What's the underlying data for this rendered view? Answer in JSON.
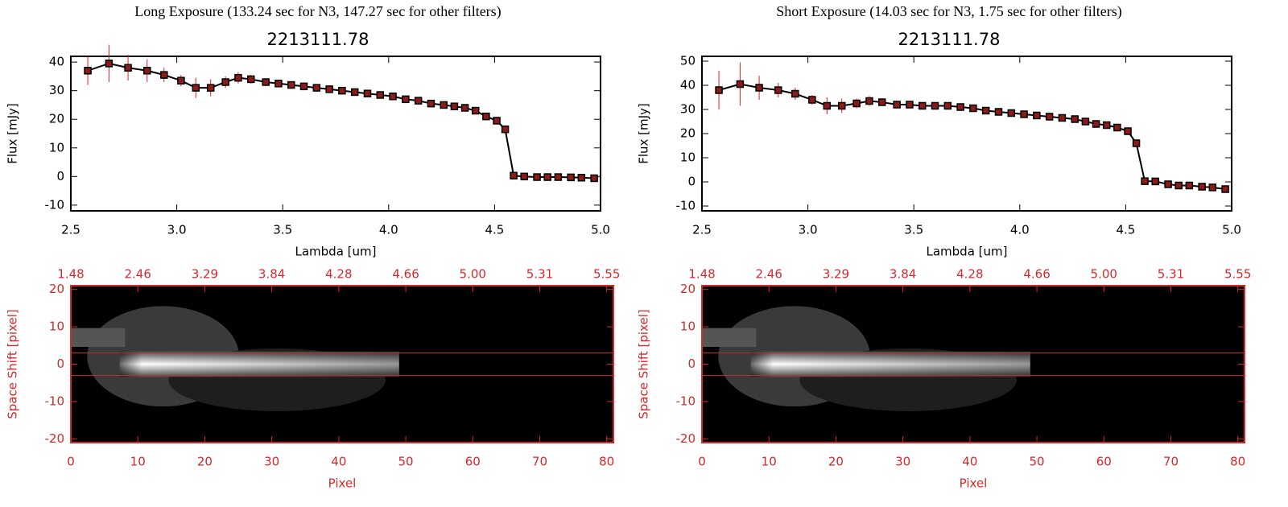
{
  "chart_data": [
    {
      "type": "line",
      "title": "Long Exposure (133.24 sec for N3, 147.27 sec for other filters)",
      "subtitle": "2213111.78",
      "xlabel": "Lambda [um]",
      "ylabel": "Flux [mJy]",
      "x": [
        2.58,
        2.68,
        2.77,
        2.86,
        2.94,
        3.02,
        3.09,
        3.16,
        3.23,
        3.29,
        3.35,
        3.42,
        3.48,
        3.54,
        3.6,
        3.66,
        3.72,
        3.78,
        3.84,
        3.9,
        3.96,
        4.02,
        4.08,
        4.14,
        4.2,
        4.26,
        4.31,
        4.36,
        4.41,
        4.46,
        4.51,
        4.55,
        4.59,
        4.64,
        4.7,
        4.75,
        4.8,
        4.86,
        4.91,
        4.97
      ],
      "values": [
        37,
        39.5,
        38,
        37,
        35.5,
        33.5,
        31,
        31,
        33,
        34.5,
        34,
        33,
        32.5,
        32,
        31.5,
        31,
        30.5,
        30,
        29.5,
        29,
        28.5,
        28,
        27,
        26.5,
        25.5,
        25,
        24.5,
        24,
        23,
        21,
        19.5,
        16.5,
        0.3,
        0,
        -0.2,
        -0.2,
        -0.2,
        -0.3,
        -0.4,
        -0.6
      ],
      "errors": [
        5,
        6.5,
        4.5,
        4,
        2.5,
        2,
        3.5,
        3,
        2,
        2,
        1.5,
        1,
        0.8,
        0.5,
        0.5,
        0.5,
        0.5,
        0.5,
        0.5,
        0.5,
        0.5,
        0.5,
        0.5,
        0.5,
        0.5,
        0.5,
        0.5,
        0.5,
        0.5,
        0.5,
        0.5,
        0.5,
        0.5,
        0.5,
        0.5,
        0.5,
        0.5,
        0.5,
        0.5,
        0.5
      ],
      "xlim": [
        2.5,
        5.0
      ],
      "xticks": [
        2.5,
        {
          "value": 3,
          "label": "3.0"
        },
        3.5,
        {
          "value": 4,
          "label": "4.0"
        },
        4.5,
        {
          "value": 5,
          "label": "5.0"
        }
      ],
      "ylim": [
        -12,
        42
      ],
      "yticks": [
        -10,
        0,
        10,
        20,
        30,
        40
      ],
      "color": "#000000",
      "marker_color": "#8b1a1a",
      "error_color": "#e02020"
    },
    {
      "type": "image",
      "xlabel": "Pixel",
      "ylabel": "Space Shift [pixel]",
      "xlim": [
        0,
        81
      ],
      "xticks": [
        0,
        10,
        20,
        30,
        40,
        50,
        60,
        70,
        80
      ],
      "x2ticks": [
        1.48,
        2.46,
        3.29,
        3.84,
        4.28,
        4.66,
        {
          "value": 5,
          "label": "5.00"
        },
        5.31,
        5.55
      ],
      "ylim": [
        -21,
        21
      ],
      "yticks": [
        -20,
        -10,
        0,
        10,
        20
      ],
      "hlines": [
        -3,
        3
      ],
      "color": "#d42a2a"
    },
    {
      "type": "line",
      "title": "Short Exposure (14.03 sec for N3, 1.75 sec for other filters)",
      "subtitle": "2213111.78",
      "xlabel": "Lambda [um]",
      "ylabel": "Flux [mJy]",
      "x": [
        2.58,
        2.68,
        2.77,
        2.86,
        2.94,
        3.02,
        3.09,
        3.16,
        3.23,
        3.29,
        3.35,
        3.42,
        3.48,
        3.54,
        3.6,
        3.66,
        3.72,
        3.78,
        3.84,
        3.9,
        3.96,
        4.02,
        4.08,
        4.14,
        4.2,
        4.26,
        4.31,
        4.36,
        4.41,
        4.46,
        4.51,
        4.55,
        4.59,
        4.64,
        4.7,
        4.75,
        4.8,
        4.86,
        4.91,
        4.97
      ],
      "values": [
        38,
        40.5,
        39,
        38,
        36.5,
        34,
        31.5,
        31.5,
        32.5,
        33.5,
        33,
        32,
        32,
        31.5,
        31.5,
        31.5,
        31,
        30.5,
        29.5,
        29,
        28.5,
        28,
        27.5,
        27,
        26.5,
        26,
        25,
        24,
        23.5,
        22.5,
        21,
        16,
        0.3,
        0.2,
        -1,
        -1.5,
        -1.5,
        -2,
        -2.3,
        -3
      ],
      "errors": [
        8,
        9,
        5,
        3,
        2.5,
        2,
        3.5,
        3,
        2,
        2,
        1.5,
        1,
        0.8,
        0.5,
        0.5,
        0.5,
        0.5,
        0.5,
        0.5,
        0.5,
        0.5,
        0.5,
        0.5,
        0.5,
        0.5,
        0.5,
        0.5,
        0.5,
        0.5,
        0.5,
        0.5,
        0.5,
        0.5,
        0.5,
        0.5,
        0.5,
        0.5,
        0.5,
        0.5,
        0.5
      ],
      "xlim": [
        2.5,
        5.0
      ],
      "xticks": [
        2.5,
        {
          "value": 3,
          "label": "3.0"
        },
        3.5,
        {
          "value": 4,
          "label": "4.0"
        },
        4.5,
        {
          "value": 5,
          "label": "5.0"
        }
      ],
      "ylim": [
        -12,
        52
      ],
      "yticks": [
        -10,
        0,
        10,
        20,
        30,
        40,
        50
      ],
      "color": "#000000",
      "marker_color": "#8b1a1a",
      "error_color": "#e02020"
    },
    {
      "type": "image",
      "xlabel": "Pixel",
      "ylabel": "Space Shift [pixel]",
      "xlim": [
        0,
        81
      ],
      "xticks": [
        0,
        10,
        20,
        30,
        40,
        50,
        60,
        70,
        80
      ],
      "x2ticks": [
        1.48,
        2.46,
        3.29,
        3.84,
        4.28,
        4.66,
        {
          "value": 5,
          "label": "5.00"
        },
        5.31,
        5.55
      ],
      "ylim": [
        -21,
        21
      ],
      "yticks": [
        -20,
        -10,
        0,
        10,
        20
      ],
      "hlines": [
        -3,
        3
      ],
      "color": "#d42a2a"
    }
  ]
}
